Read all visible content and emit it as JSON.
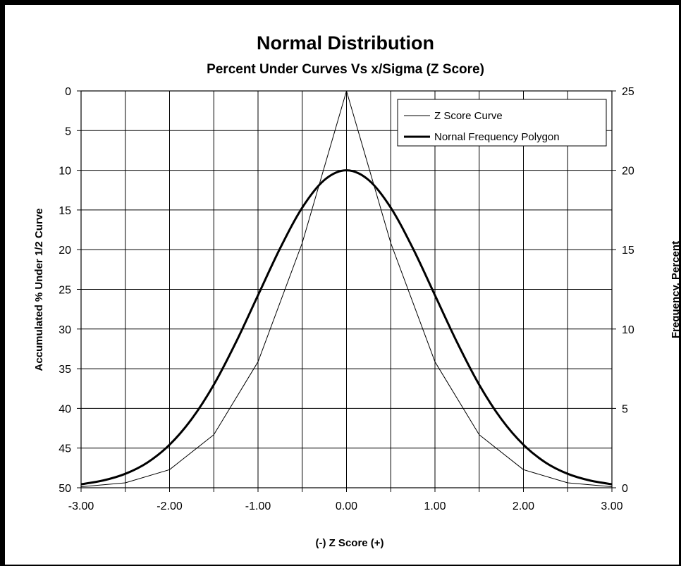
{
  "chart_data": {
    "type": "line",
    "title": "Normal Distribution",
    "subtitle": "Percent Under Curves Vs x/Sigma (Z Score)",
    "xlabel": "(-) Z Score (+)",
    "ylabel_left": "Accumulated % Under 1/2 Curve",
    "ylabel_right": "Frequency, Percent",
    "xlim": [
      -3,
      3
    ],
    "ylim_left": [
      0,
      50
    ],
    "ylim_left_inverted": true,
    "ylim_right": [
      0,
      25
    ],
    "x_tick_labels": [
      "-3.00",
      "-2.00",
      "-1.00",
      "0.00",
      "1.00",
      "2.00",
      "3.00"
    ],
    "x_ticks": [
      -3,
      -2,
      -1,
      0,
      1,
      2,
      3
    ],
    "x_minor_ticks": [
      -2.5,
      -1.5,
      -0.5,
      0.5,
      1.5,
      2.5
    ],
    "y_left_ticks": [
      0,
      5,
      10,
      15,
      20,
      25,
      30,
      35,
      40,
      45,
      50
    ],
    "y_left_tick_labels": [
      "0",
      "5",
      "10",
      "15",
      "20",
      "25",
      "30",
      "35",
      "40",
      "45",
      "50"
    ],
    "y_right_ticks": [
      0,
      5,
      10,
      15,
      20,
      25
    ],
    "y_right_tick_labels": [
      "0",
      "5",
      "10",
      "15",
      "20",
      "25"
    ],
    "grid": true,
    "legend_position": "top-right",
    "series": [
      {
        "name": "Z Score Curve",
        "axis": "left",
        "color": "#000000",
        "weight": "thin",
        "x": [
          -3.0,
          -2.5,
          -2.0,
          -1.5,
          -1.0,
          -0.5,
          0.0,
          0.5,
          1.0,
          1.5,
          2.0,
          2.5,
          3.0
        ],
        "values": [
          49.87,
          49.38,
          47.72,
          43.32,
          34.13,
          19.15,
          0.0,
          19.15,
          34.13,
          43.32,
          47.72,
          49.38,
          49.87
        ]
      },
      {
        "name": "Nornal Frequency Polygon",
        "axis": "right",
        "color": "#000000",
        "weight": "thick",
        "x": [
          -3.0,
          -2.75,
          -2.5,
          -2.25,
          -2.0,
          -1.75,
          -1.5,
          -1.25,
          -1.0,
          -0.75,
          -0.5,
          -0.25,
          0.0,
          0.25,
          0.5,
          0.75,
          1.0,
          1.25,
          1.5,
          1.75,
          2.0,
          2.25,
          2.5,
          2.75,
          3.0
        ],
        "values": [
          0.22,
          0.46,
          0.88,
          1.59,
          2.71,
          4.33,
          6.49,
          9.16,
          12.13,
          15.09,
          17.65,
          19.39,
          20.0,
          19.39,
          17.65,
          15.09,
          12.13,
          9.16,
          6.49,
          4.33,
          2.71,
          1.59,
          0.88,
          0.46,
          0.22
        ]
      }
    ]
  }
}
